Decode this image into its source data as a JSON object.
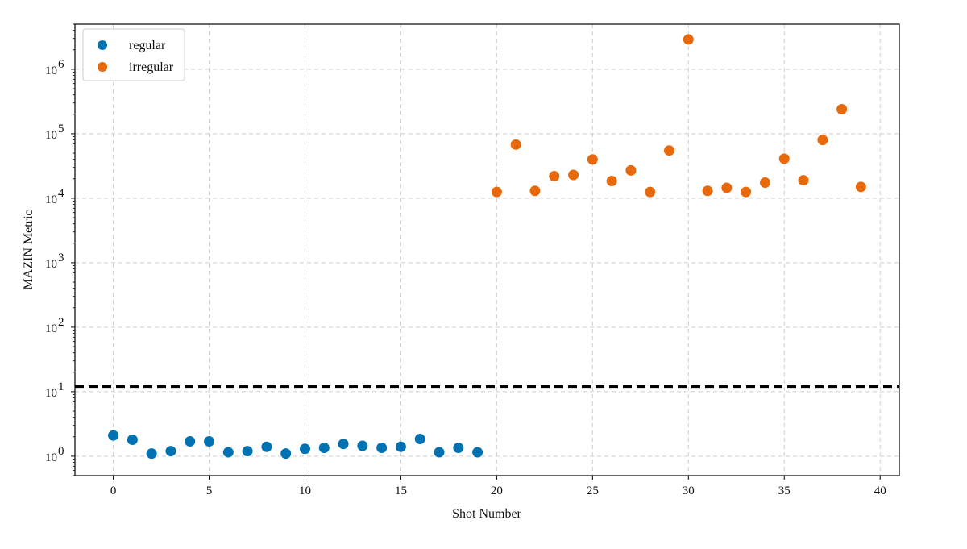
{
  "chart_data": {
    "type": "scatter",
    "title": "",
    "xlabel": "Shot Number",
    "ylabel": "MAZIN Metric",
    "yscale": "log",
    "xlim": [
      -2,
      41
    ],
    "ylim": [
      0.5,
      5000000
    ],
    "x_ticks": [
      0,
      5,
      10,
      15,
      20,
      25,
      30,
      35,
      40
    ],
    "x_tick_labels": [
      "0",
      "5",
      "10",
      "15",
      "20",
      "25",
      "30",
      "35",
      "40"
    ],
    "y_ticks": [
      1,
      10,
      100,
      1000,
      10000,
      100000,
      1000000
    ],
    "y_tick_base": "10",
    "y_tick_exponents": [
      "0",
      "1",
      "2",
      "3",
      "4",
      "5",
      "6"
    ],
    "grid": true,
    "legend_position": "top-left",
    "threshold": {
      "y": 12,
      "style": "dashed",
      "color": "#000000"
    },
    "series": [
      {
        "name": "regular",
        "color": "#0072b2",
        "x": [
          0,
          1,
          2,
          3,
          4,
          5,
          6,
          7,
          8,
          9,
          10,
          11,
          12,
          13,
          14,
          15,
          16,
          17,
          18,
          19
        ],
        "y": [
          2.1,
          1.8,
          1.1,
          1.2,
          1.7,
          1.7,
          1.15,
          1.2,
          1.4,
          1.1,
          1.3,
          1.35,
          1.55,
          1.45,
          1.35,
          1.4,
          1.85,
          1.15,
          1.35,
          1.15
        ]
      },
      {
        "name": "irregular",
        "color": "#e8690b",
        "x": [
          20,
          21,
          22,
          23,
          24,
          25,
          26,
          27,
          28,
          29,
          30,
          31,
          32,
          33,
          34,
          35,
          36,
          37,
          38,
          39
        ],
        "y": [
          12500,
          68000,
          13000,
          22000,
          23000,
          40000,
          18500,
          27000,
          12500,
          55000,
          2900000,
          13000,
          14500,
          12500,
          17500,
          41000,
          19000,
          80000,
          240000,
          15000
        ]
      }
    ]
  }
}
